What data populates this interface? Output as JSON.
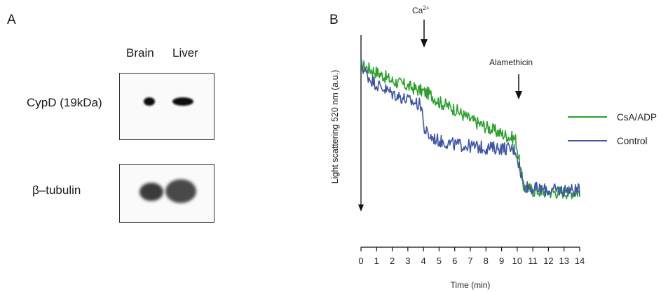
{
  "panel_a": {
    "letter": "A",
    "lanes": [
      "Brain",
      "Liver"
    ],
    "rows": [
      {
        "label": "CypD (19kDa)"
      },
      {
        "label": "β–tubulin"
      }
    ]
  },
  "panel_b": {
    "letter": "B",
    "annotations": {
      "ca_base": "Ca",
      "ca_sup": "2+",
      "alamethicin": "Alamethicin"
    },
    "chart_data": {
      "type": "line",
      "xlabel": "Time (min)",
      "ylabel": "Light scattering 520 nm (a.u.)",
      "xlim": [
        0,
        14
      ],
      "ylim": [
        0,
        1
      ],
      "x_ticks": [
        0,
        1,
        2,
        3,
        4,
        5,
        6,
        7,
        8,
        9,
        10,
        11,
        12,
        13,
        14
      ],
      "legend_position": "right",
      "series": [
        {
          "name": "CsA/ADP",
          "color": "#2ca02c",
          "x": [
            0,
            0.5,
            1,
            2,
            3,
            4,
            4.5,
            5,
            6,
            7,
            8,
            9,
            9.9,
            10.1,
            10.4,
            11,
            12,
            13,
            14
          ],
          "y": [
            0.83,
            0.81,
            0.79,
            0.74,
            0.71,
            0.68,
            0.66,
            0.62,
            0.58,
            0.52,
            0.48,
            0.44,
            0.41,
            0.3,
            0.14,
            0.12,
            0.11,
            0.11,
            0.11
          ]
        },
        {
          "name": "Control",
          "color": "#3f55a5",
          "x": [
            0,
            0.5,
            1,
            2,
            3,
            3.9,
            4.0,
            4.3,
            5,
            6,
            7,
            8,
            9,
            9.9,
            10.1,
            10.4,
            11,
            12,
            13,
            14
          ],
          "y": [
            0.83,
            0.76,
            0.72,
            0.67,
            0.63,
            0.6,
            0.48,
            0.43,
            0.4,
            0.38,
            0.37,
            0.36,
            0.36,
            0.35,
            0.27,
            0.15,
            0.13,
            0.12,
            0.12,
            0.12
          ]
        }
      ]
    }
  }
}
